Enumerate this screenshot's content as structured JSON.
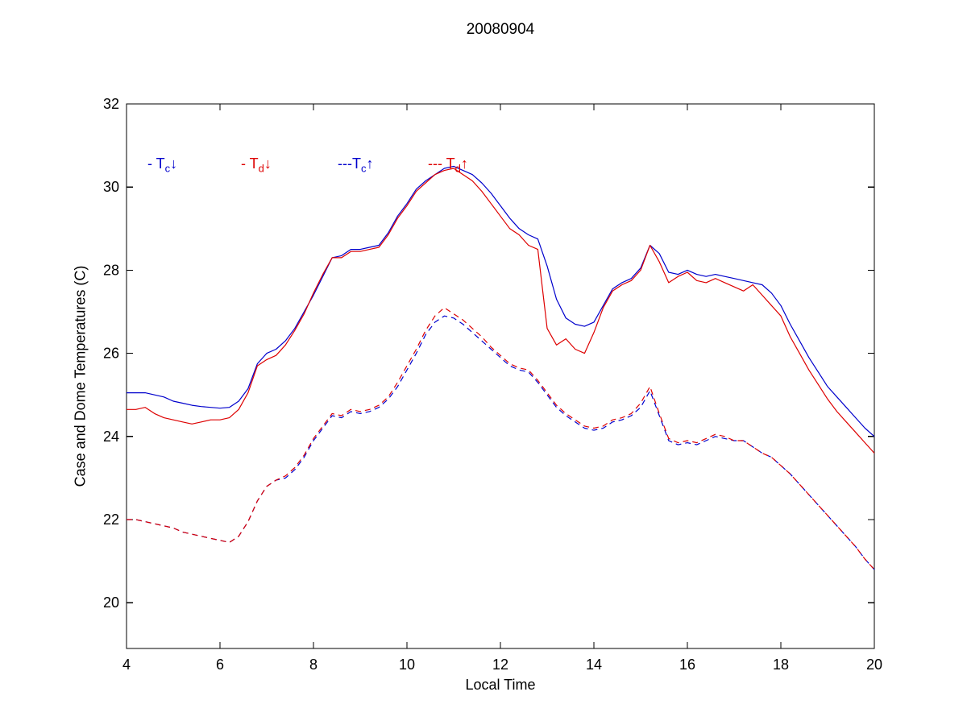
{
  "title": "20080904",
  "axes": {
    "xlabel": "Local Time",
    "ylabel": "Case and Dome Temperatures (C)",
    "xticks": [
      4,
      6,
      8,
      10,
      12,
      14,
      16,
      18,
      20
    ],
    "yticks": [
      20,
      22,
      24,
      26,
      28,
      30,
      32
    ]
  },
  "legend": {
    "entries": [
      {
        "prefix": "- T",
        "sub": "c",
        "arrow": "↓",
        "color": "#0000cc"
      },
      {
        "prefix": "- T",
        "sub": "d",
        "arrow": "↓",
        "color": "#dd0000"
      },
      {
        "prefix": "---T",
        "sub": "c",
        "arrow": "↑",
        "color": "#0000cc"
      },
      {
        "prefix": "--- T",
        "sub": "d",
        "arrow": "↑",
        "color": "#dd0000"
      }
    ]
  },
  "chart_data": {
    "type": "line",
    "title": "20080904",
    "xlabel": "Local Time",
    "ylabel": "Case and Dome Temperatures (C)",
    "xlim": [
      4,
      20
    ],
    "ylim": [
      18.9,
      32
    ],
    "grid": false,
    "legend_position": "inside-top-left",
    "x": [
      4,
      4.2,
      4.4,
      4.6,
      4.8,
      5,
      5.2,
      5.4,
      5.6,
      5.8,
      6,
      6.2,
      6.4,
      6.6,
      6.8,
      7,
      7.2,
      7.4,
      7.6,
      7.8,
      8,
      8.2,
      8.4,
      8.6,
      8.8,
      9,
      9.2,
      9.4,
      9.6,
      9.8,
      10,
      10.2,
      10.4,
      10.6,
      10.8,
      11,
      11.2,
      11.4,
      11.6,
      11.8,
      12,
      12.2,
      12.4,
      12.6,
      12.8,
      13,
      13.2,
      13.4,
      13.6,
      13.8,
      14,
      14.2,
      14.4,
      14.6,
      14.8,
      15,
      15.2,
      15.4,
      15.6,
      15.8,
      16,
      16.2,
      16.4,
      16.6,
      16.8,
      17,
      17.2,
      17.4,
      17.6,
      17.8,
      18,
      18.2,
      18.4,
      18.6,
      18.8,
      19,
      19.2,
      19.4,
      19.6,
      19.8,
      20
    ],
    "series": [
      {
        "name": "Tc-down",
        "label": "T_c down",
        "style": "solid",
        "color": "#0000cc",
        "values": [
          25.05,
          25.05,
          25.05,
          25.0,
          24.95,
          24.85,
          24.8,
          24.75,
          24.72,
          24.7,
          24.68,
          24.7,
          24.85,
          25.15,
          25.75,
          26.0,
          26.1,
          26.3,
          26.6,
          27.0,
          27.4,
          27.85,
          28.3,
          28.35,
          28.5,
          28.5,
          28.55,
          28.6,
          28.9,
          29.3,
          29.6,
          29.95,
          30.15,
          30.3,
          30.45,
          30.5,
          30.4,
          30.3,
          30.1,
          29.85,
          29.55,
          29.25,
          29.0,
          28.85,
          28.75,
          28.1,
          27.3,
          26.85,
          26.7,
          26.65,
          26.75,
          27.15,
          27.55,
          27.7,
          27.8,
          28.05,
          28.6,
          28.4,
          27.95,
          27.9,
          28.0,
          27.9,
          27.85,
          27.9,
          27.85,
          27.8,
          27.75,
          27.7,
          27.65,
          27.45,
          27.15,
          26.7,
          26.3,
          25.9,
          25.55,
          25.2,
          24.95,
          24.7,
          24.45,
          24.2,
          24.0
        ]
      },
      {
        "name": "Td-down",
        "label": "T_d down",
        "style": "solid",
        "color": "#dd0000",
        "values": [
          24.65,
          24.65,
          24.7,
          24.55,
          24.45,
          24.4,
          24.35,
          24.3,
          24.35,
          24.4,
          24.4,
          24.45,
          24.65,
          25.05,
          25.7,
          25.85,
          25.95,
          26.2,
          26.55,
          26.95,
          27.45,
          27.9,
          28.3,
          28.3,
          28.45,
          28.45,
          28.5,
          28.55,
          28.85,
          29.25,
          29.55,
          29.9,
          30.1,
          30.3,
          30.4,
          30.45,
          30.3,
          30.15,
          29.9,
          29.6,
          29.3,
          29.0,
          28.85,
          28.6,
          28.5,
          26.6,
          26.2,
          26.35,
          26.1,
          26.0,
          26.5,
          27.1,
          27.5,
          27.65,
          27.75,
          28.0,
          28.6,
          28.2,
          27.7,
          27.85,
          27.95,
          27.75,
          27.7,
          27.8,
          27.7,
          27.6,
          27.5,
          27.65,
          27.4,
          27.15,
          26.9,
          26.4,
          26.0,
          25.6,
          25.25,
          24.9,
          24.6,
          24.35,
          24.1,
          23.85,
          23.6
        ]
      },
      {
        "name": "Tc-up",
        "label": "T_c up",
        "style": "dashed",
        "color": "#0000cc",
        "values": [
          22.0,
          22.0,
          21.95,
          21.9,
          21.85,
          21.8,
          21.7,
          21.65,
          21.6,
          21.55,
          21.5,
          21.45,
          21.6,
          21.95,
          22.45,
          22.8,
          22.95,
          23.0,
          23.2,
          23.5,
          23.9,
          24.2,
          24.5,
          24.45,
          24.6,
          24.55,
          24.6,
          24.7,
          24.9,
          25.2,
          25.6,
          26.0,
          26.45,
          26.75,
          26.9,
          26.85,
          26.7,
          26.5,
          26.3,
          26.1,
          25.9,
          25.7,
          25.6,
          25.55,
          25.3,
          25.0,
          24.7,
          24.5,
          24.35,
          24.2,
          24.15,
          24.2,
          24.35,
          24.4,
          24.5,
          24.7,
          25.1,
          24.5,
          23.9,
          23.8,
          23.85,
          23.8,
          23.9,
          24.0,
          23.95,
          23.9,
          23.9,
          23.75,
          23.6,
          23.5,
          23.3,
          23.1,
          22.85,
          22.6,
          22.35,
          22.1,
          21.85,
          21.6,
          21.35,
          21.05,
          20.8
        ]
      },
      {
        "name": "Td-up",
        "label": "T_d up",
        "style": "dashed",
        "color": "#dd0000",
        "values": [
          22.0,
          22.0,
          21.95,
          21.9,
          21.85,
          21.8,
          21.7,
          21.65,
          21.6,
          21.55,
          21.5,
          21.45,
          21.6,
          21.95,
          22.45,
          22.8,
          22.95,
          23.05,
          23.25,
          23.55,
          23.95,
          24.25,
          24.55,
          24.5,
          24.65,
          24.6,
          24.65,
          24.75,
          24.95,
          25.3,
          25.7,
          26.1,
          26.55,
          26.9,
          27.1,
          26.95,
          26.8,
          26.6,
          26.4,
          26.15,
          25.95,
          25.75,
          25.65,
          25.6,
          25.35,
          25.05,
          24.75,
          24.55,
          24.4,
          24.25,
          24.2,
          24.25,
          24.4,
          24.45,
          24.55,
          24.8,
          25.2,
          24.55,
          23.95,
          23.85,
          23.9,
          23.85,
          23.95,
          24.05,
          24.0,
          23.9,
          23.9,
          23.75,
          23.6,
          23.5,
          23.3,
          23.1,
          22.85,
          22.6,
          22.35,
          22.1,
          21.85,
          21.6,
          21.35,
          21.05,
          20.8
        ]
      }
    ]
  }
}
